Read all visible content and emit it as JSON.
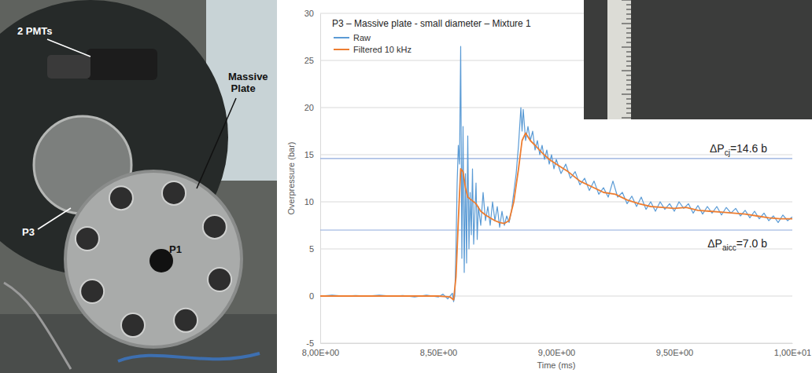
{
  "chart_data": {
    "type": "line",
    "title": "P3 – Massive plate - small diameter – Mixture 1",
    "x_label": "Time (ms)",
    "y_label": "Overpressure (bar)",
    "xlim": [
      8,
      10
    ],
    "xticks": [
      {
        "value": 8,
        "label": "8,00E+00"
      },
      {
        "value": 8.5,
        "label": "8,50E+00"
      },
      {
        "value": 9,
        "label": "9,00E+00"
      },
      {
        "value": 9.5,
        "label": "9,50E+00"
      },
      {
        "value": 10,
        "label": "1,00E+01"
      }
    ],
    "ylim": [
      -5,
      30
    ],
    "yticks": [
      -5,
      0,
      5,
      10,
      15,
      20,
      25,
      30
    ],
    "grid": true,
    "legend": "top-left",
    "series": [
      {
        "name": "Raw",
        "color": "#5b9bd5",
        "x": [
          8.0,
          8.05,
          8.1,
          8.15,
          8.2,
          8.25,
          8.3,
          8.35,
          8.4,
          8.45,
          8.5,
          8.52,
          8.54,
          8.56,
          8.565,
          8.57,
          8.575,
          8.58,
          8.585,
          8.59,
          8.595,
          8.6,
          8.605,
          8.61,
          8.615,
          8.62,
          8.625,
          8.63,
          8.635,
          8.64,
          8.645,
          8.65,
          8.66,
          8.665,
          8.67,
          8.68,
          8.69,
          8.7,
          8.71,
          8.72,
          8.73,
          8.74,
          8.75,
          8.76,
          8.77,
          8.78,
          8.79,
          8.8,
          8.81,
          8.82,
          8.83,
          8.84,
          8.85,
          8.855,
          8.86,
          8.87,
          8.88,
          8.89,
          8.9,
          8.91,
          8.92,
          8.93,
          8.94,
          8.95,
          8.96,
          8.97,
          8.98,
          8.99,
          9.0,
          9.02,
          9.04,
          9.06,
          9.08,
          9.1,
          9.12,
          9.14,
          9.16,
          9.18,
          9.2,
          9.22,
          9.24,
          9.26,
          9.28,
          9.3,
          9.32,
          9.34,
          9.36,
          9.38,
          9.4,
          9.42,
          9.44,
          9.46,
          9.48,
          9.5,
          9.52,
          9.54,
          9.56,
          9.58,
          9.6,
          9.62,
          9.64,
          9.66,
          9.68,
          9.7,
          9.72,
          9.74,
          9.76,
          9.78,
          9.8,
          9.82,
          9.84,
          9.86,
          9.88,
          9.9,
          9.92,
          9.94,
          9.96,
          9.98,
          10.0
        ],
        "values": [
          0,
          0.1,
          0,
          0.05,
          0,
          0.1,
          0,
          0.05,
          -0.1,
          0.1,
          -0.1,
          0.2,
          -0.3,
          0.3,
          -0.6,
          0,
          5,
          12,
          16,
          14,
          26.5,
          4,
          18,
          2.5,
          13,
          3.5,
          17,
          5,
          11,
          6.5,
          13.5,
          5.5,
          12,
          6,
          9.5,
          7.5,
          11,
          8,
          9.5,
          7.5,
          10,
          8,
          9.5,
          7.3,
          9,
          7.5,
          8.5,
          7.8,
          9,
          11,
          13,
          16,
          20,
          17.5,
          19.8,
          16.5,
          18,
          16.5,
          17.5,
          15.5,
          16.5,
          15,
          16,
          14.5,
          15.5,
          14,
          15,
          13.5,
          14.5,
          13,
          14,
          12.5,
          13.2,
          11.8,
          12.5,
          11.2,
          12.2,
          10.8,
          11.5,
          10.5,
          12.2,
          10.5,
          11,
          9.8,
          10.6,
          9.5,
          10.5,
          9.2,
          10,
          9,
          10,
          9.2,
          9.8,
          9,
          10,
          9.3,
          9.8,
          8.8,
          9.6,
          8.7,
          9.5,
          8.8,
          9.5,
          8.6,
          9.4,
          8.8,
          9.3,
          8.5,
          9.1,
          8.3,
          9,
          8.2,
          8.8,
          8,
          8.5,
          7.8,
          8.6,
          8,
          8.4
        ]
      },
      {
        "name": "Filtered 10 kHz",
        "color": "#ed7d31",
        "x": [
          8.0,
          8.2,
          8.4,
          8.5,
          8.55,
          8.565,
          8.575,
          8.585,
          8.595,
          8.605,
          8.615,
          8.625,
          8.64,
          8.66,
          8.68,
          8.7,
          8.72,
          8.74,
          8.76,
          8.78,
          8.8,
          8.82,
          8.84,
          8.855,
          8.87,
          8.89,
          8.91,
          8.94,
          8.97,
          9.0,
          9.05,
          9.1,
          9.15,
          9.2,
          9.25,
          9.3,
          9.35,
          9.4,
          9.45,
          9.5,
          9.55,
          9.6,
          9.65,
          9.7,
          9.75,
          9.8,
          9.85,
          9.9,
          9.95,
          10.0
        ],
        "values": [
          0,
          0,
          0,
          0,
          -0.1,
          -0.4,
          2,
          8,
          13.5,
          13.2,
          11.5,
          10.5,
          10.2,
          9.8,
          9,
          8.6,
          8.3,
          8,
          7.8,
          7.7,
          8,
          10,
          13.5,
          16.5,
          17.3,
          16.5,
          16,
          15.2,
          14.5,
          14,
          13.2,
          12.2,
          11.6,
          11,
          10.8,
          10.2,
          9.8,
          9.5,
          9.4,
          9.3,
          9.4,
          9.1,
          9,
          8.9,
          8.8,
          8.7,
          8.5,
          8.3,
          8.2,
          8.2
        ]
      }
    ],
    "reference_lines": [
      {
        "value": 14.6,
        "label": "ΔPcj=14.6 b"
      },
      {
        "value": 7.0,
        "label": "ΔPaicc=7.0 b"
      }
    ]
  },
  "photo": {
    "labels": [
      "2 PMTs",
      "Massive Plate",
      "P3",
      "P1"
    ]
  }
}
